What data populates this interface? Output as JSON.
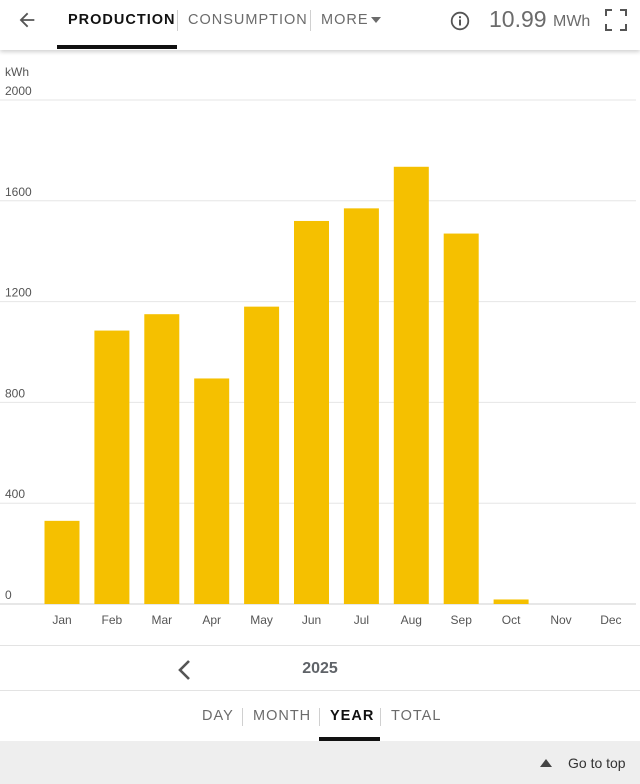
{
  "header": {
    "tabs": [
      {
        "label": "PRODUCTION"
      },
      {
        "label": "CONSUMPTION"
      },
      {
        "label": "MORE"
      }
    ],
    "total_value": "10.99",
    "total_unit": "MWh",
    "icons": [
      "back-arrow-icon",
      "chevron-down-icon",
      "info-icon",
      "fullscreen-icon"
    ]
  },
  "chart_data": {
    "type": "bar",
    "ylabel": "kWh",
    "ylim": [
      0,
      2000
    ],
    "y_ticks": [
      "0",
      "400",
      "800",
      "1200",
      "1600",
      "2000"
    ],
    "categories": [
      "Jan",
      "Feb",
      "Mar",
      "Apr",
      "May",
      "Jun",
      "Jul",
      "Aug",
      "Sep",
      "Oct",
      "Nov",
      "Dec"
    ],
    "values": [
      330,
      1085,
      1150,
      895,
      1180,
      1520,
      1570,
      1735,
      1470,
      18,
      0,
      0
    ],
    "bar_color": "#f5c000",
    "grid": true
  },
  "period": {
    "label": "2025"
  },
  "range_tabs": [
    {
      "label": "DAY"
    },
    {
      "label": "MONTH"
    },
    {
      "label": "YEAR"
    },
    {
      "label": "TOTAL"
    }
  ],
  "footer": {
    "go_top_label": "Go to top"
  }
}
